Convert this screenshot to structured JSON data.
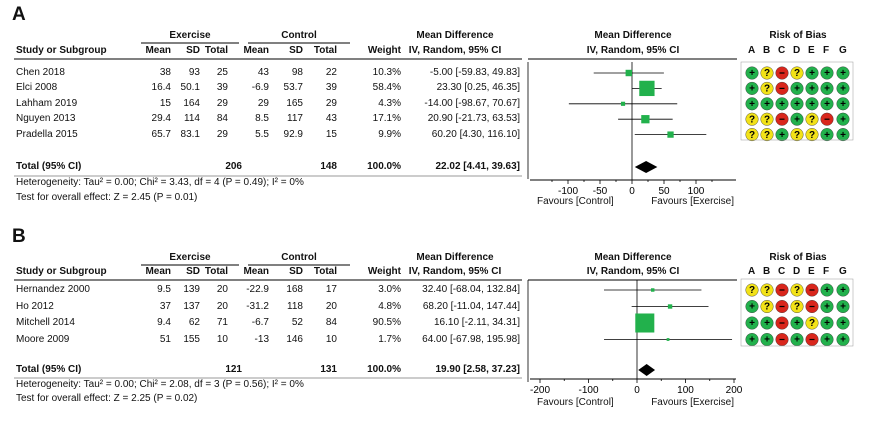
{
  "panels": [
    {
      "label": "A",
      "headers": {
        "group_exercise": "Exercise",
        "group_control": "Control",
        "study": "Study or Subgroup",
        "mean": "Mean",
        "sd": "SD",
        "total": "Total",
        "weight": "Weight",
        "md_title": "Mean Difference",
        "md_method": "IV, Random, 95% CI",
        "rob_title": "Risk of Bias",
        "rob_letters": [
          "A",
          "B",
          "C",
          "D",
          "E",
          "F",
          "G"
        ]
      },
      "rows": [
        {
          "study": "Chen 2018",
          "em": "38",
          "esd": "93",
          "et": "25",
          "cm": "43",
          "csd": "98",
          "ct": "22",
          "weight": "10.3%",
          "ci": "-5.00 [-59.83, 49.83]",
          "rob": [
            "+",
            "?",
            "-",
            "?",
            "+",
            "+",
            "+"
          ]
        },
        {
          "study": "Elci 2008",
          "em": "16.4",
          "esd": "50.1",
          "et": "39",
          "cm": "-6.9",
          "csd": "53.7",
          "ct": "39",
          "weight": "58.4%",
          "ci": "23.30 [0.25, 46.35]",
          "rob": [
            "+",
            "?",
            "-",
            "+",
            "+",
            "+",
            "+"
          ]
        },
        {
          "study": "Lahham 2019",
          "em": "15",
          "esd": "164",
          "et": "29",
          "cm": "29",
          "csd": "165",
          "ct": "29",
          "weight": "4.3%",
          "ci": "-14.00 [-98.67, 70.67]",
          "rob": [
            "+",
            "+",
            "+",
            "+",
            "+",
            "+",
            "+"
          ]
        },
        {
          "study": "Nguyen 2013",
          "em": "29.4",
          "esd": "114",
          "et": "84",
          "cm": "8.5",
          "csd": "117",
          "ct": "43",
          "weight": "17.1%",
          "ci": "20.90 [-21.73, 63.53]",
          "rob": [
            "?",
            "?",
            "-",
            "+",
            "?",
            "-",
            "+"
          ]
        },
        {
          "study": "Pradella 2015",
          "em": "65.7",
          "esd": "83.1",
          "et": "29",
          "cm": "5.5",
          "csd": "92.9",
          "ct": "15",
          "weight": "9.9%",
          "ci": "60.20 [4.30, 116.10]",
          "rob": [
            "?",
            "?",
            "+",
            "?",
            "?",
            "+",
            "+"
          ]
        }
      ],
      "total": {
        "label": "Total (95% CI)",
        "et": "206",
        "ct": "148",
        "weight": "100.0%",
        "ci": "22.02 [4.41, 39.63]"
      },
      "heterogeneity": "Heterogeneity: Tau² = 0.00; Chi² = 3.43, df = 4 (P = 0.49); I² = 0%",
      "overall_effect": "Test for overall effect: Z = 2.45 (P = 0.01)",
      "favours_left": "Favours [Control]",
      "favours_right": "Favours [Exercise]"
    },
    {
      "label": "B",
      "headers": {
        "group_exercise": "Exercise",
        "group_control": "Control",
        "study": "Study or Subgroup",
        "mean": "Mean",
        "sd": "SD",
        "total": "Total",
        "weight": "Weight",
        "md_title": "Mean Difference",
        "md_method": "IV, Random, 95% CI",
        "rob_title": "Risk of Bias",
        "rob_letters": [
          "A",
          "B",
          "C",
          "D",
          "E",
          "F",
          "G"
        ]
      },
      "rows": [
        {
          "study": "Hernandez 2000",
          "em": "9.5",
          "esd": "139",
          "et": "20",
          "cm": "-22.9",
          "csd": "168",
          "ct": "17",
          "weight": "3.0%",
          "ci": "32.40 [-68.04, 132.84]",
          "rob": [
            "?",
            "?",
            "-",
            "?",
            "-",
            "+",
            "+"
          ]
        },
        {
          "study": "Ho 2012",
          "em": "37",
          "esd": "137",
          "et": "20",
          "cm": "-31.2",
          "csd": "118",
          "ct": "20",
          "weight": "4.8%",
          "ci": "68.20 [-11.04, 147.44]",
          "rob": [
            "+",
            "?",
            "-",
            "?",
            "-",
            "+",
            "+"
          ]
        },
        {
          "study": "Mitchell 2014",
          "em": "9.4",
          "esd": "62",
          "et": "71",
          "cm": "-6.7",
          "csd": "52",
          "ct": "84",
          "weight": "90.5%",
          "ci": "16.10 [-2.11, 34.31]",
          "rob": [
            "+",
            "+",
            "-",
            "+",
            "?",
            "+",
            "+"
          ]
        },
        {
          "study": "Moore 2009",
          "em": "51",
          "esd": "155",
          "et": "10",
          "cm": "-13",
          "csd": "146",
          "ct": "10",
          "weight": "1.7%",
          "ci": "64.00 [-67.98, 195.98]",
          "rob": [
            "+",
            "+",
            "-",
            "+",
            "-",
            "+",
            "+"
          ]
        }
      ],
      "total": {
        "label": "Total (95% CI)",
        "et": "121",
        "ct": "131",
        "weight": "100.0%",
        "ci": "19.90 [2.58, 37.23]"
      },
      "heterogeneity": "Heterogeneity: Tau² = 0.00; Chi² = 2.08, df = 3 (P = 0.56); I² = 0%",
      "overall_effect": "Test for overall effect: Z = 2.25 (P = 0.02)",
      "favours_left": "Favours [Control]",
      "favours_right": "Favours [Exercise]"
    }
  ],
  "colors": {
    "square": "#22b14c",
    "diamond": "#000000",
    "low_risk": "#22b14c",
    "unclear_risk": "#f2e218",
    "high_risk": "#d9261c"
  },
  "chart_data": [
    {
      "type": "forest",
      "panel": "A",
      "studies": [
        {
          "name": "Chen 2018",
          "md": -5.0,
          "lo": -59.83,
          "hi": 49.83,
          "weight": 10.3
        },
        {
          "name": "Elci 2008",
          "md": 23.3,
          "lo": 0.25,
          "hi": 46.35,
          "weight": 58.4
        },
        {
          "name": "Lahham 2019",
          "md": -14.0,
          "lo": -98.67,
          "hi": 70.67,
          "weight": 4.3
        },
        {
          "name": "Nguyen 2013",
          "md": 20.9,
          "lo": -21.73,
          "hi": 63.53,
          "weight": 17.1
        },
        {
          "name": "Pradella 2015",
          "md": 60.2,
          "lo": 4.3,
          "hi": 116.1,
          "weight": 9.9
        }
      ],
      "pooled": {
        "md": 22.02,
        "lo": 4.41,
        "hi": 39.63
      },
      "xlim": [
        -100,
        100
      ],
      "ticks": [
        -100,
        -50,
        0,
        50,
        100
      ]
    },
    {
      "type": "forest",
      "panel": "B",
      "studies": [
        {
          "name": "Hernandez 2000",
          "md": 32.4,
          "lo": -68.04,
          "hi": 132.84,
          "weight": 3.0
        },
        {
          "name": "Ho 2012",
          "md": 68.2,
          "lo": -11.04,
          "hi": 147.44,
          "weight": 4.8
        },
        {
          "name": "Mitchell 2014",
          "md": 16.1,
          "lo": -2.11,
          "hi": 34.31,
          "weight": 90.5
        },
        {
          "name": "Moore 2009",
          "md": 64.0,
          "lo": -67.98,
          "hi": 195.98,
          "weight": 1.7
        }
      ],
      "pooled": {
        "md": 19.9,
        "lo": 2.58,
        "hi": 37.23
      },
      "xlim": [
        -200,
        200
      ],
      "ticks": [
        -200,
        -100,
        0,
        100,
        200
      ]
    }
  ]
}
